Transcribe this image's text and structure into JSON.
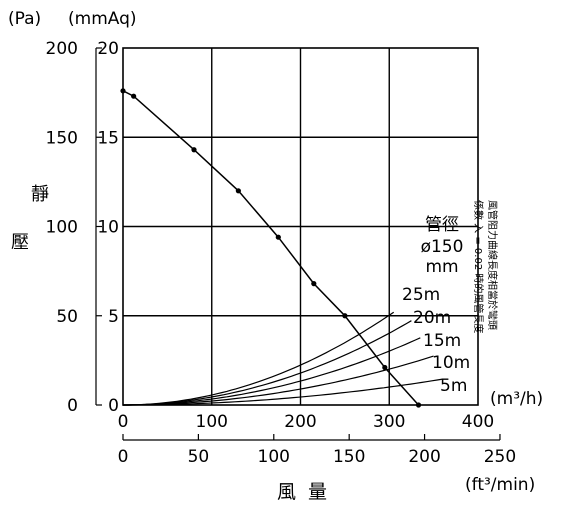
{
  "chart_data": {
    "type": "line",
    "title": "",
    "unit_labels": {
      "pa": "(Pa)",
      "mmaq": "(mmAq)",
      "m3h": "(m³/h)",
      "ftmin": "(ft³/min)"
    },
    "ylabel": [
      "靜",
      "壓"
    ],
    "xlabel": "風  量",
    "x_axis_m3h": {
      "range": [
        0,
        400
      ],
      "ticks": [
        "0",
        "100",
        "200",
        "300",
        "400"
      ],
      "values": [
        0,
        100,
        200,
        300,
        400
      ]
    },
    "x_axis_cfm": {
      "range": [
        0,
        250
      ],
      "ticks": [
        "0",
        "50",
        "100",
        "150",
        "200",
        "250"
      ],
      "values": [
        0,
        50,
        100,
        150,
        200,
        250
      ]
    },
    "y_axis_mmaq": {
      "range": [
        0,
        20
      ],
      "ticks": [
        "0",
        "5",
        "10",
        "15",
        "20"
      ],
      "values": [
        0,
        5,
        10,
        15,
        20
      ]
    },
    "y_axis_pa": {
      "range": [
        0,
        200
      ],
      "ticks": [
        "0",
        "50",
        "100",
        "150",
        "200"
      ],
      "values": [
        0,
        50,
        100,
        150,
        200
      ]
    },
    "grid": true,
    "fan_curve": {
      "x": [
        0,
        12,
        80,
        130,
        175,
        215,
        250,
        295,
        333
      ],
      "y": [
        17.6,
        17.3,
        14.3,
        12.0,
        9.4,
        6.8,
        5.0,
        2.1,
        0
      ]
    },
    "duct_diameter": {
      "label": "管徑",
      "value": "ø150",
      "unit": "mm"
    },
    "duct_curves": [
      {
        "name": "25m",
        "coef": 25,
        "end_x": 305
      },
      {
        "name": "20m",
        "coef": 20,
        "end_x": 325
      },
      {
        "name": "15m",
        "coef": 15,
        "end_x": 335
      },
      {
        "name": "10m",
        "coef": 10,
        "end_x": 350
      },
      {
        "name": "5m",
        "coef": 5,
        "end_x": 360
      }
    ],
    "note": [
      "風管阻力曲線長度相當於彎頭",
      "係數 入 = 0.02 時的風管長度"
    ]
  }
}
